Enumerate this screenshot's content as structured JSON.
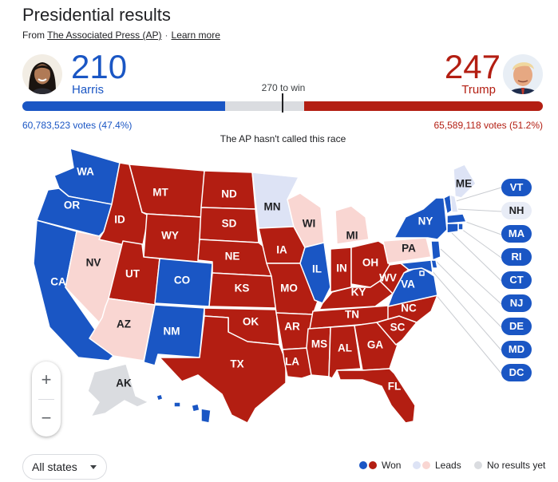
{
  "header": {
    "title": "Presidential results",
    "source_prefix": "From",
    "source_link": "The Associated Press (AP)",
    "separator": "·",
    "learn_more": "Learn more"
  },
  "harris": {
    "name": "Harris",
    "electoral_votes": "210",
    "votes_text": "60,783,523 votes (47.4%)",
    "color": "#1a56c4"
  },
  "trump": {
    "name": "Trump",
    "electoral_votes": "247",
    "votes_text": "65,589,118 votes (51.2%)",
    "color": "#b31e12"
  },
  "win_threshold": "270 to win",
  "status": "The AP hasn't called this race",
  "colors": {
    "dem_won": "#1a56c4",
    "rep_won": "#b31e12",
    "dem_lead": "#dde3f5",
    "rep_lead": "#f9d6d2",
    "no_results": "#dadce0"
  },
  "states": [
    {
      "abbr": "WA",
      "status": "dem_won"
    },
    {
      "abbr": "OR",
      "status": "dem_won"
    },
    {
      "abbr": "CA",
      "status": "dem_won"
    },
    {
      "abbr": "NV",
      "status": "rep_lead"
    },
    {
      "abbr": "ID",
      "status": "rep_won"
    },
    {
      "abbr": "MT",
      "status": "rep_won"
    },
    {
      "abbr": "WY",
      "status": "rep_won"
    },
    {
      "abbr": "UT",
      "status": "rep_won"
    },
    {
      "abbr": "CO",
      "status": "dem_won"
    },
    {
      "abbr": "AZ",
      "status": "rep_lead"
    },
    {
      "abbr": "NM",
      "status": "dem_won"
    },
    {
      "abbr": "ND",
      "status": "rep_won"
    },
    {
      "abbr": "SD",
      "status": "rep_won"
    },
    {
      "abbr": "NE",
      "status": "rep_won"
    },
    {
      "abbr": "KS",
      "status": "rep_won"
    },
    {
      "abbr": "OK",
      "status": "rep_won"
    },
    {
      "abbr": "TX",
      "status": "rep_won"
    },
    {
      "abbr": "MN",
      "status": "dem_lead"
    },
    {
      "abbr": "IA",
      "status": "rep_won"
    },
    {
      "abbr": "MO",
      "status": "rep_won"
    },
    {
      "abbr": "AR",
      "status": "rep_won"
    },
    {
      "abbr": "LA",
      "status": "rep_won"
    },
    {
      "abbr": "WI",
      "status": "rep_lead"
    },
    {
      "abbr": "IL",
      "status": "dem_won"
    },
    {
      "abbr": "MI",
      "status": "rep_lead"
    },
    {
      "abbr": "IN",
      "status": "rep_won"
    },
    {
      "abbr": "OH",
      "status": "rep_won"
    },
    {
      "abbr": "KY",
      "status": "rep_won"
    },
    {
      "abbr": "TN",
      "status": "rep_won"
    },
    {
      "abbr": "MS",
      "status": "rep_won"
    },
    {
      "abbr": "AL",
      "status": "rep_won"
    },
    {
      "abbr": "GA",
      "status": "rep_won"
    },
    {
      "abbr": "FL",
      "status": "rep_won"
    },
    {
      "abbr": "SC",
      "status": "rep_won"
    },
    {
      "abbr": "NC",
      "status": "rep_won"
    },
    {
      "abbr": "VA",
      "status": "dem_won"
    },
    {
      "abbr": "WV",
      "status": "rep_won"
    },
    {
      "abbr": "PA",
      "status": "rep_lead"
    },
    {
      "abbr": "NY",
      "status": "dem_won"
    },
    {
      "abbr": "ME",
      "status": "dem_lead"
    },
    {
      "abbr": "AK",
      "status": "no_results"
    },
    {
      "abbr": "HI",
      "status": "dem_won"
    }
  ],
  "small_states": [
    {
      "abbr": "VT",
      "status": "dem_won"
    },
    {
      "abbr": "NH",
      "status": "dem_lead"
    },
    {
      "abbr": "MA",
      "status": "dem_won"
    },
    {
      "abbr": "RI",
      "status": "dem_won"
    },
    {
      "abbr": "CT",
      "status": "dem_won"
    },
    {
      "abbr": "NJ",
      "status": "dem_won"
    },
    {
      "abbr": "DE",
      "status": "dem_won"
    },
    {
      "abbr": "MD",
      "status": "dem_won"
    },
    {
      "abbr": "DC",
      "status": "dem_won"
    }
  ],
  "zoom": {
    "in": "+",
    "out": "−"
  },
  "filter": {
    "selected": "All states"
  },
  "legend": {
    "won": "Won",
    "leads": "Leads",
    "no_results": "No results yet"
  }
}
